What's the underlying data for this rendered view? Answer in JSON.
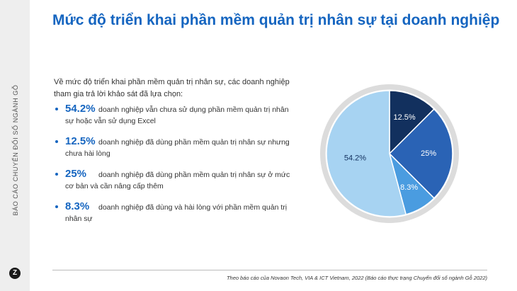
{
  "side": {
    "label": "BÁO CÁO CHUYỂN ĐỔI SỐ NGÀNH GỖ",
    "logo": "Z"
  },
  "title": "Mức độ triển khai phần mềm quản trị nhân sự tại doanh nghiệp",
  "intro": "Về mức độ triển khai phần mềm quản trị nhân sự, các doanh nghiệp tham gia trả lời khảo sát đã lựa chọn:",
  "stats": [
    {
      "value": "54.2%",
      "line1": "doanh nghiệp vẫn chưa sử dụng phần mềm quản trị nhân",
      "line2": "sự hoặc vẫn sử dụng Excel"
    },
    {
      "value": "12.5%",
      "line1": "doanh nghiệp đã dùng phần mềm quản trị nhân sự nhưng",
      "line2": "chưa hài lòng"
    },
    {
      "value": "25%",
      "line1": "doanh nghiệp đã dùng phần mềm quản trị nhân sự ở mức",
      "line2": "cơ bản và cần nâng cấp thêm"
    },
    {
      "value": "8.3%",
      "line1": "doanh nghiệp đã dùng và hài lòng với phần mềm quản trị",
      "line2": "nhân sự"
    }
  ],
  "chart_data": {
    "type": "pie",
    "slices": [
      {
        "label": "12.5%",
        "value": 12.5,
        "color": "#12305e"
      },
      {
        "label": "25%",
        "value": 25,
        "color": "#2a63b5"
      },
      {
        "label": "8.3%",
        "value": 8.3,
        "color": "#4a9ce0"
      },
      {
        "label": "54.2%",
        "value": 54.2,
        "color": "#a7d3f2"
      }
    ],
    "start_angle": "12 o'clock",
    "direction": "clockwise",
    "ring_color": "#dcdcdc"
  },
  "footer": "Theo báo cáo của Novaon Tech, VIA & ICT Vietnam, 2022 (Báo cáo thực trạng Chuyển đổi số ngành Gỗ 2022)"
}
